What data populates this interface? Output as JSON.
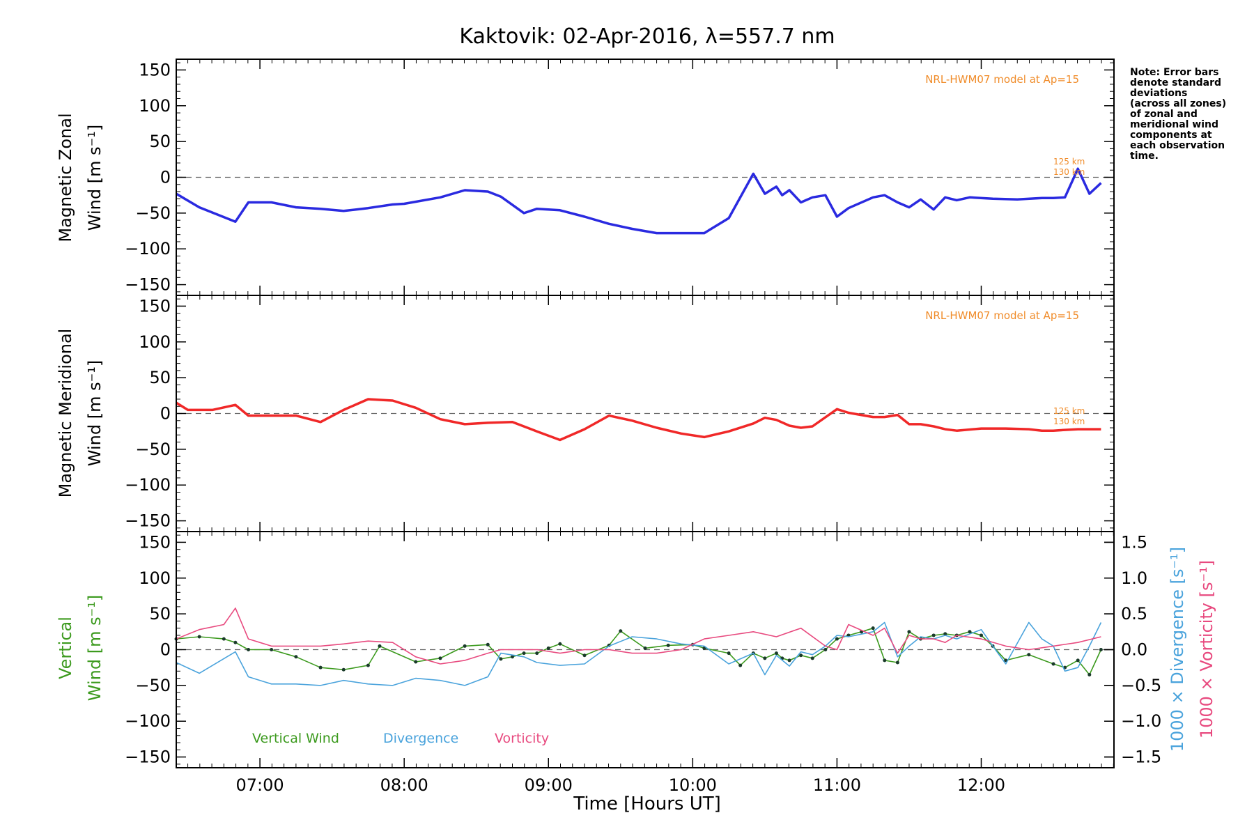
{
  "chart_data": [
    {
      "type": "line",
      "title": "Kaktovik: 02-Apr-2016, λ=557.7 nm",
      "ylabel_line1": "Magnetic Zonal",
      "ylabel_line2": "Wind [m s⁻¹]",
      "ylim": [
        -165,
        165
      ],
      "yticks": [
        -150,
        -100,
        -50,
        0,
        50,
        100,
        150
      ],
      "model_label": "NRL-HWM07 model at Ap=15",
      "model_alt_labels": [
        "125 km",
        "130 km"
      ],
      "note": [
        "Note: Error bars",
        "denote standard",
        "deviations",
        "(across all zones)",
        "of zonal and",
        "meridional wind",
        "components at",
        "each observation",
        "time."
      ],
      "series": [
        {
          "color": "#2a2ae0",
          "x": [
            6.42,
            6.58,
            6.83,
            6.92,
            7.08,
            7.25,
            7.42,
            7.58,
            7.75,
            7.92,
            8.0,
            8.25,
            8.42,
            8.58,
            8.67,
            8.83,
            8.92,
            9.08,
            9.25,
            9.42,
            9.58,
            9.75,
            9.92,
            10.08,
            10.25,
            10.42,
            10.5,
            10.58,
            10.62,
            10.67,
            10.75,
            10.83,
            10.92,
            11.0,
            11.08,
            11.25,
            11.33,
            11.42,
            11.5,
            11.58,
            11.67,
            11.75,
            11.83,
            11.92,
            12.08,
            12.25,
            12.42,
            12.5,
            12.58,
            12.67,
            12.75,
            12.83
          ],
          "y": [
            -23,
            -42,
            -62,
            -35,
            -35,
            -42,
            -44,
            -47,
            -43,
            -38,
            -37,
            -28,
            -18,
            -20,
            -27,
            -50,
            -44,
            -46,
            -55,
            -65,
            -72,
            -78,
            -78,
            -78,
            -57,
            5,
            -23,
            -13,
            -25,
            -18,
            -35,
            -28,
            -25,
            -55,
            -43,
            -28,
            -25,
            -35,
            -42,
            -31,
            -45,
            -28,
            -32,
            -28,
            -30,
            -31,
            -29,
            -29,
            -28,
            12,
            -23,
            -8
          ]
        }
      ]
    },
    {
      "type": "line",
      "ylabel_line1": "Magnetic Meridional",
      "ylabel_line2": "Wind [m s⁻¹]",
      "ylim": [
        -165,
        165
      ],
      "yticks": [
        -150,
        -100,
        -50,
        0,
        50,
        100,
        150
      ],
      "model_label": "NRL-HWM07 model at Ap=15",
      "model_alt_labels": [
        "125 km",
        "130 km"
      ],
      "series": [
        {
          "color": "#f02828",
          "x": [
            6.42,
            6.5,
            6.67,
            6.83,
            6.92,
            7.08,
            7.25,
            7.42,
            7.58,
            7.75,
            7.92,
            8.08,
            8.25,
            8.42,
            8.58,
            8.75,
            8.92,
            9.08,
            9.25,
            9.42,
            9.58,
            9.75,
            9.92,
            10.08,
            10.25,
            10.42,
            10.5,
            10.58,
            10.67,
            10.75,
            10.83,
            11.0,
            11.08,
            11.25,
            11.33,
            11.42,
            11.5,
            11.58,
            11.67,
            11.75,
            11.83,
            12.0,
            12.17,
            12.33,
            12.42,
            12.5,
            12.58,
            12.67,
            12.75,
            12.83
          ],
          "y": [
            15,
            5,
            5,
            12,
            -3,
            -3,
            -3,
            -12,
            5,
            20,
            18,
            8,
            -8,
            -15,
            -13,
            -12,
            -25,
            -37,
            -22,
            -3,
            -10,
            -20,
            -28,
            -33,
            -25,
            -14,
            -6,
            -9,
            -17,
            -20,
            -18,
            6,
            1,
            -5,
            -5,
            -2,
            -15,
            -15,
            -18,
            -22,
            -24,
            -21,
            -21,
            -22,
            -24,
            -24,
            -23,
            -22,
            -22,
            -22
          ]
        }
      ]
    },
    {
      "type": "line",
      "ylabel_left_line1": "Vertical",
      "ylabel_left_line2": "Wind [m s⁻¹]",
      "ylim": [
        -165,
        165
      ],
      "yticks": [
        -150,
        -100,
        -50,
        0,
        50,
        100,
        150
      ],
      "ylabel_right1": "1000 × Divergence [s⁻¹]",
      "ylabel_right2": "1000 × Vorticity [s⁻¹]",
      "ylim_right": [
        -1.65,
        1.65
      ],
      "yticks_right": [
        -1.5,
        -1.0,
        -0.5,
        0.0,
        0.5,
        1.0,
        1.5
      ],
      "legend": [
        "Vertical Wind",
        "Divergence",
        "Vorticity"
      ],
      "xlabel": "Time [Hours UT]",
      "xlim": [
        6.42,
        12.92
      ],
      "xticks": [
        "07:00",
        "08:00",
        "09:00",
        "10:00",
        "11:00",
        "12:00"
      ],
      "xtick_values": [
        7,
        8,
        9,
        10,
        11,
        12
      ],
      "series": [
        {
          "name": "Vertical Wind",
          "color": "#3c9a1e",
          "x": [
            6.42,
            6.58,
            6.75,
            6.83,
            6.92,
            7.08,
            7.25,
            7.42,
            7.58,
            7.75,
            7.83,
            8.08,
            8.25,
            8.42,
            8.58,
            8.67,
            8.75,
            8.83,
            8.92,
            9.0,
            9.08,
            9.25,
            9.42,
            9.5,
            9.67,
            9.83,
            10.0,
            10.08,
            10.25,
            10.33,
            10.42,
            10.5,
            10.58,
            10.62,
            10.67,
            10.75,
            10.83,
            10.92,
            11.0,
            11.08,
            11.17,
            11.25,
            11.33,
            11.42,
            11.5,
            11.58,
            11.67,
            11.75,
            11.83,
            11.92,
            12.0,
            12.08,
            12.17,
            12.33,
            12.5,
            12.58,
            12.67,
            12.75,
            12.83
          ],
          "y": [
            15,
            18,
            15,
            10,
            0,
            0,
            -10,
            -25,
            -28,
            -22,
            5,
            -17,
            -12,
            5,
            7,
            -13,
            -10,
            -5,
            -5,
            2,
            8,
            -8,
            6,
            26,
            2,
            6,
            7,
            2,
            -5,
            -22,
            -5,
            -12,
            -5,
            -12,
            -15,
            -8,
            -12,
            0,
            15,
            20,
            25,
            30,
            -15,
            -18,
            25,
            15,
            20,
            22,
            20,
            25,
            20,
            5,
            -15,
            -7,
            -20,
            -25,
            -15,
            -35,
            0
          ]
        },
        {
          "name": "Divergence",
          "color": "#4aa3dc",
          "x": [
            6.42,
            6.58,
            6.83,
            6.92,
            7.08,
            7.25,
            7.42,
            7.58,
            7.75,
            7.92,
            8.08,
            8.25,
            8.42,
            8.58,
            8.67,
            8.83,
            8.92,
            9.08,
            9.25,
            9.42,
            9.58,
            9.75,
            9.92,
            10.08,
            10.25,
            10.42,
            10.5,
            10.58,
            10.67,
            10.75,
            10.83,
            10.92,
            11.0,
            11.08,
            11.25,
            11.33,
            11.42,
            11.5,
            11.58,
            11.67,
            11.75,
            11.83,
            12.0,
            12.08,
            12.17,
            12.33,
            12.42,
            12.5,
            12.58,
            12.67,
            12.75,
            12.83
          ],
          "y": [
            -0.18,
            -0.33,
            -0.03,
            -0.38,
            -0.48,
            -0.48,
            -0.5,
            -0.43,
            -0.48,
            -0.5,
            -0.4,
            -0.43,
            -0.5,
            -0.38,
            -0.05,
            -0.1,
            -0.18,
            -0.22,
            -0.2,
            0.05,
            0.18,
            0.15,
            0.08,
            0.05,
            -0.2,
            -0.05,
            -0.35,
            -0.08,
            -0.23,
            -0.03,
            -0.07,
            0.05,
            0.2,
            0.18,
            0.25,
            0.38,
            -0.1,
            0.05,
            0.18,
            0.15,
            0.2,
            0.15,
            0.28,
            0.05,
            -0.2,
            0.38,
            0.15,
            0.05,
            -0.3,
            -0.25,
            0.05,
            0.38
          ]
        },
        {
          "name": "Vorticity",
          "color": "#e84a7f",
          "x": [
            6.42,
            6.58,
            6.75,
            6.83,
            6.92,
            7.08,
            7.25,
            7.42,
            7.58,
            7.75,
            7.92,
            8.08,
            8.25,
            8.42,
            8.58,
            8.67,
            8.75,
            8.92,
            9.08,
            9.25,
            9.42,
            9.58,
            9.75,
            9.92,
            10.08,
            10.25,
            10.42,
            10.58,
            10.75,
            10.92,
            11.0,
            11.08,
            11.25,
            11.33,
            11.42,
            11.5,
            11.58,
            11.67,
            11.75,
            11.83,
            12.0,
            12.17,
            12.33,
            12.5,
            12.67,
            12.83
          ],
          "y": [
            0.15,
            0.28,
            0.35,
            0.58,
            0.15,
            0.05,
            0.05,
            0.05,
            0.08,
            0.12,
            0.1,
            -0.1,
            -0.2,
            -0.15,
            -0.05,
            0.0,
            0.0,
            0.0,
            -0.05,
            0.0,
            0.0,
            -0.05,
            -0.05,
            0.0,
            0.15,
            0.2,
            0.25,
            0.18,
            0.3,
            0.05,
            0.0,
            0.35,
            0.2,
            0.3,
            -0.05,
            0.2,
            0.15,
            0.15,
            0.1,
            0.2,
            0.15,
            0.05,
            0.0,
            0.05,
            0.1,
            0.18
          ]
        }
      ]
    }
  ]
}
